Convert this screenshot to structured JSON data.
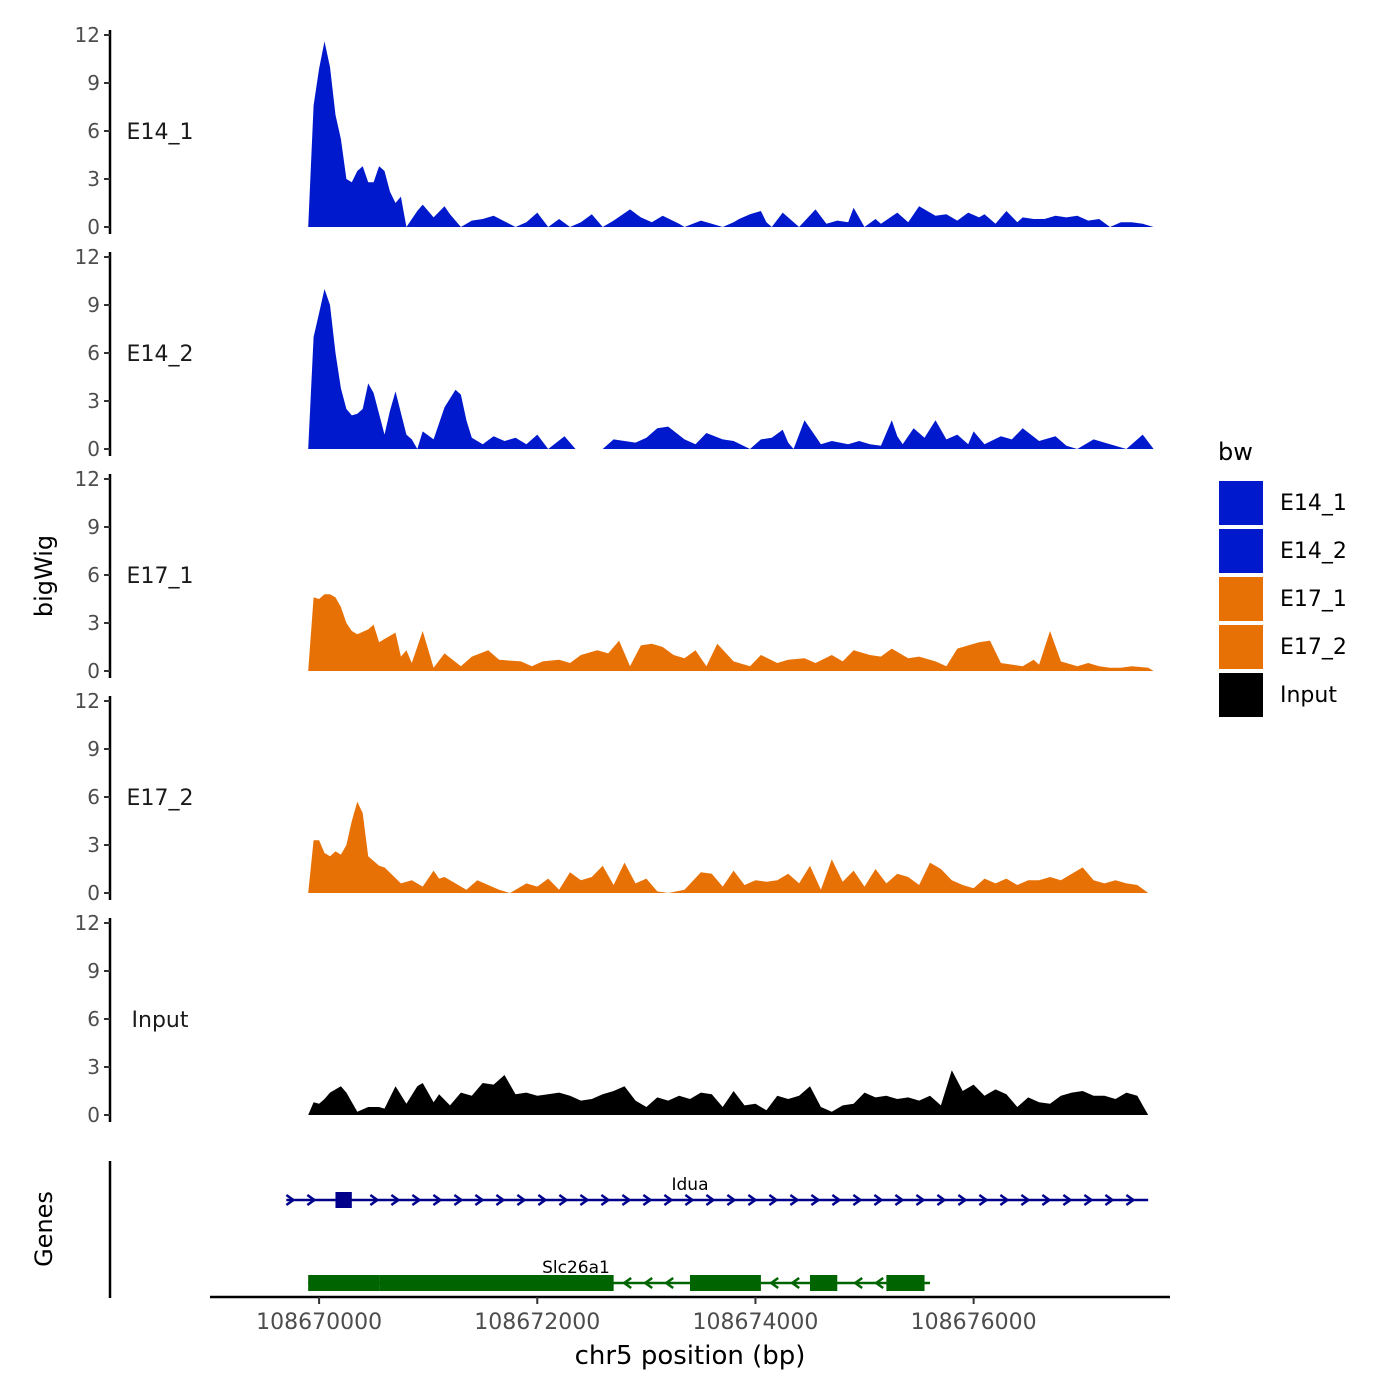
{
  "chart_data": {
    "type": "area",
    "ylabel": "bigWig",
    "xlabel": "chr5 position (bp)",
    "ylim": [
      0,
      12
    ],
    "yticks": [
      0,
      3,
      6,
      9,
      12
    ],
    "xlim": [
      108669000,
      108677800
    ],
    "xticks": [
      108670000,
      108672000,
      108674000,
      108676000
    ],
    "xtick_labels": [
      "108670000",
      "108672000",
      "108674000",
      "108676000"
    ],
    "legend": {
      "title": "bw",
      "placement": "right",
      "entries": [
        {
          "name": "E14_1",
          "color": "#0019CC"
        },
        {
          "name": "E14_2",
          "color": "#0019CC"
        },
        {
          "name": "E17_1",
          "color": "#E87106"
        },
        {
          "name": "E17_2",
          "color": "#E87106"
        },
        {
          "name": "Input",
          "color": "#000000"
        }
      ]
    },
    "series": [
      {
        "name": "E14_1",
        "label": "E14_1",
        "color": "#0019CC",
        "x": [
          108669900,
          108669950,
          108670000,
          108670050,
          108670100,
          108670150,
          108670200,
          108670250,
          108670300,
          108670350,
          108670400,
          108670450,
          108670500,
          108670550,
          108670600,
          108670650,
          108670700,
          108670750,
          108670800,
          108670900,
          108670950,
          108671050,
          108671150,
          108671200,
          108671300,
          108671400,
          108671500,
          108671600,
          108671800,
          108671900,
          108672000,
          108672100,
          108672200,
          108672300,
          108672400,
          108672500,
          108672600,
          108672700,
          108672850,
          108672950,
          108673050,
          108673150,
          108673300,
          108673350,
          108673500,
          108673600,
          108673700,
          108673800,
          108673850,
          108673950,
          108674050,
          108674100,
          108674150,
          108674250,
          108674400,
          108674550,
          108674650,
          108674750,
          108674850,
          108674900,
          108675000,
          108675100,
          108675150,
          108675300,
          108675400,
          108675500,
          108675650,
          108675750,
          108675850,
          108675950,
          108676050,
          108676100,
          108676200,
          108676300,
          108676400,
          108676450,
          108676550,
          108676650,
          108676750,
          108676850,
          108676950,
          108677050,
          108677150,
          108677250,
          108677350,
          108677450,
          108677550,
          108677650
        ],
        "y": [
          0,
          7.6,
          9.9,
          11.6,
          10,
          7,
          5.5,
          3,
          2.8,
          3.5,
          3.8,
          2.8,
          2.8,
          3.8,
          3.5,
          2.2,
          1.5,
          1.9,
          0,
          1,
          1.4,
          0.6,
          1.3,
          0.8,
          0,
          0.4,
          0.5,
          0.7,
          0,
          0.3,
          0.9,
          0,
          0.5,
          0,
          0.3,
          0.8,
          0,
          0.4,
          1.1,
          0.6,
          0.3,
          0.7,
          0.2,
          0,
          0.4,
          0.2,
          0,
          0.3,
          0.5,
          0.8,
          1,
          0.3,
          0,
          0.9,
          0,
          1.1,
          0.2,
          0.4,
          0.3,
          1.2,
          0,
          0.5,
          0.2,
          0.9,
          0.3,
          1.3,
          0.7,
          0.8,
          0.4,
          0.9,
          0.6,
          0.8,
          0.2,
          1,
          0.3,
          0.6,
          0.5,
          0.5,
          0.7,
          0.6,
          0.7,
          0.4,
          0.5,
          0,
          0.3,
          0.3,
          0.2,
          0
        ]
      },
      {
        "name": "E14_2",
        "label": "E14_2",
        "color": "#0019CC",
        "x": [
          108669900,
          108669950,
          108670000,
          108670050,
          108670100,
          108670150,
          108670200,
          108670250,
          108670300,
          108670350,
          108670400,
          108670450,
          108670500,
          108670600,
          108670650,
          108670700,
          108670800,
          108670850,
          108670900,
          108670950,
          108671050,
          108671150,
          108671250,
          108671300,
          108671350,
          108671400,
          108671500,
          108671600,
          108671700,
          108671800,
          108671900,
          108672000,
          108672100,
          108672250,
          108672350,
          108672600,
          108672700,
          108672800,
          108672900,
          108673000,
          108673100,
          108673200,
          108673350,
          108673450,
          108673550,
          108673700,
          108673800,
          108673950,
          108674050,
          108674150,
          108674250,
          108674300,
          108674350,
          108674450,
          108674550,
          108674600,
          108674700,
          108674850,
          108674950,
          108675050,
          108675150,
          108675250,
          108675300,
          108675350,
          108675450,
          108675550,
          108675650,
          108675750,
          108675850,
          108675950,
          108676000,
          108676100,
          108676250,
          108676350,
          108676450,
          108676600,
          108676750,
          108676850,
          108676950,
          108677100,
          108677200,
          108677400,
          108677550,
          108677650
        ],
        "y": [
          0,
          7,
          8.5,
          10,
          9,
          6,
          3.8,
          2.5,
          2.1,
          2.2,
          2.5,
          4.1,
          3.5,
          0.9,
          2.4,
          3.6,
          0.9,
          0.6,
          0,
          1.1,
          0.6,
          2.6,
          3.7,
          3.4,
          1.8,
          0.7,
          0.3,
          0.8,
          0.5,
          0.7,
          0.3,
          0.9,
          0,
          0.8,
          0,
          0,
          0.6,
          0.5,
          0.4,
          0.7,
          1.3,
          1.4,
          0.6,
          0.3,
          1,
          0.6,
          0.5,
          0,
          0.6,
          0.7,
          1.2,
          0.4,
          0,
          1.8,
          0.8,
          0.3,
          0.5,
          0.3,
          0.5,
          0.3,
          0.2,
          1.8,
          0.8,
          0.3,
          1.3,
          0.7,
          1.8,
          0.6,
          0.9,
          0.3,
          1.1,
          0.3,
          0.8,
          0.6,
          1.3,
          0.5,
          0.8,
          0.2,
          0,
          0.6,
          0.4,
          0,
          0.9,
          0
        ]
      },
      {
        "name": "E17_1",
        "label": "E17_1",
        "color": "#E87106",
        "x": [
          108669900,
          108669950,
          108670000,
          108670050,
          108670100,
          108670150,
          108670200,
          108670250,
          108670300,
          108670350,
          108670450,
          108670500,
          108670550,
          108670600,
          108670700,
          108670750,
          108670800,
          108670850,
          108670950,
          108671050,
          108671150,
          108671300,
          108671400,
          108671550,
          108671650,
          108671850,
          108671950,
          108672050,
          108672200,
          108672300,
          108672400,
          108672550,
          108672650,
          108672750,
          108672850,
          108672950,
          108673050,
          108673150,
          108673250,
          108673350,
          108673450,
          108673550,
          108673650,
          108673800,
          108673950,
          108674050,
          108674200,
          108674300,
          108674450,
          108674550,
          108674700,
          108674800,
          108674900,
          108675050,
          108675150,
          108675250,
          108675400,
          108675500,
          108675650,
          108675750,
          108675850,
          108675950,
          108676050,
          108676150,
          108676250,
          108676350,
          108676450,
          108676550,
          108676600,
          108676700,
          108676800,
          108676950,
          108677050,
          108677150,
          108677250,
          108677350,
          108677450,
          108677600,
          108677650
        ],
        "y": [
          0,
          4.6,
          4.5,
          4.8,
          4.8,
          4.6,
          4,
          3,
          2.5,
          2.3,
          2.6,
          2.9,
          1.8,
          2,
          2.4,
          0.9,
          1.3,
          0.5,
          2.5,
          0.2,
          1.1,
          0.3,
          0.9,
          1.3,
          0.7,
          0.6,
          0.3,
          0.6,
          0.7,
          0.5,
          1,
          1.3,
          1.1,
          1.9,
          0.3,
          1.6,
          1.7,
          1.5,
          1,
          0.8,
          1.3,
          0.3,
          1.7,
          0.6,
          0.3,
          1,
          0.5,
          0.7,
          0.8,
          0.5,
          1,
          0.6,
          1.3,
          1,
          0.9,
          1.4,
          0.8,
          0.9,
          0.6,
          0.3,
          1.4,
          1.6,
          1.8,
          1.9,
          0.5,
          0.4,
          0.3,
          0.7,
          0.4,
          2.5,
          0.6,
          0.3,
          0.5,
          0.3,
          0.2,
          0.2,
          0.3,
          0.2,
          0
        ]
      },
      {
        "name": "E17_2",
        "label": "E17_2",
        "color": "#E87106",
        "x": [
          108669900,
          108669950,
          108670000,
          108670050,
          108670100,
          108670150,
          108670200,
          108670250,
          108670300,
          108670350,
          108670400,
          108670450,
          108670550,
          108670600,
          108670750,
          108670850,
          108670950,
          108671050,
          108671100,
          108671150,
          108671250,
          108671350,
          108671450,
          108671550,
          108671650,
          108671750,
          108671900,
          108672000,
          108672100,
          108672200,
          108672300,
          108672400,
          108672500,
          108672600,
          108672700,
          108672800,
          108672900,
          108673000,
          108673100,
          108673200,
          108673350,
          108673500,
          108673600,
          108673700,
          108673800,
          108673900,
          108674000,
          108674100,
          108674200,
          108674300,
          108674400,
          108674500,
          108674600,
          108674700,
          108674800,
          108674900,
          108675000,
          108675100,
          108675200,
          108675300,
          108675400,
          108675500,
          108675600,
          108675700,
          108675800,
          108675900,
          108676000,
          108676100,
          108676200,
          108676300,
          108676400,
          108676500,
          108676600,
          108676700,
          108676800,
          108676900,
          108677000,
          108677100,
          108677200,
          108677300,
          108677400,
          108677500,
          108677600
        ],
        "y": [
          0,
          3.3,
          3.3,
          2.5,
          2.3,
          2.6,
          2.4,
          3,
          4.5,
          5.7,
          5,
          2.3,
          1.7,
          1.6,
          0.6,
          0.8,
          0.4,
          1.4,
          0.9,
          1,
          0.6,
          0.2,
          0.8,
          0.5,
          0.2,
          0,
          0.6,
          0.4,
          0.9,
          0.2,
          1.3,
          0.8,
          1,
          1.7,
          0.5,
          1.9,
          0.6,
          0.9,
          0.1,
          0,
          0.2,
          1.3,
          1.2,
          0.4,
          1.4,
          0.5,
          0.8,
          0.7,
          0.8,
          1.2,
          0.6,
          1.7,
          0.2,
          2.1,
          0.7,
          1.4,
          0.4,
          1.5,
          0.6,
          1.2,
          1,
          0.5,
          1.9,
          1.5,
          0.8,
          0.5,
          0.3,
          0.9,
          0.6,
          0.9,
          0.5,
          0.8,
          0.8,
          1,
          0.8,
          1.2,
          1.6,
          0.8,
          0.6,
          0.8,
          0.6,
          0.5,
          0
        ]
      },
      {
        "name": "Input",
        "label": "Input",
        "color": "#000000",
        "x": [
          108669900,
          108669950,
          108670000,
          108670050,
          108670100,
          108670150,
          108670200,
          108670250,
          108670350,
          108670450,
          108670550,
          108670600,
          108670700,
          108670800,
          108670900,
          108670950,
          108671050,
          108671100,
          108671200,
          108671300,
          108671400,
          108671500,
          108671600,
          108671700,
          108671800,
          108671900,
          108672000,
          108672100,
          108672200,
          108672300,
          108672400,
          108672500,
          108672600,
          108672700,
          108672800,
          108672900,
          108673000,
          108673100,
          108673200,
          108673300,
          108673400,
          108673500,
          108673600,
          108673700,
          108673800,
          108673900,
          108674000,
          108674100,
          108674200,
          108674300,
          108674400,
          108674500,
          108674600,
          108674700,
          108674800,
          108674900,
          108675000,
          108675100,
          108675200,
          108675300,
          108675400,
          108675500,
          108675600,
          108675700,
          108675800,
          108675900,
          108676000,
          108676100,
          108676200,
          108676300,
          108676400,
          108676500,
          108676600,
          108676700,
          108676800,
          108676900,
          108677000,
          108677100,
          108677200,
          108677300,
          108677400,
          108677500,
          108677600
        ],
        "y": [
          0,
          0.8,
          0.7,
          1,
          1.4,
          1.6,
          1.8,
          1.4,
          0.2,
          0.5,
          0.5,
          0.4,
          1.8,
          0.7,
          1.8,
          2,
          0.8,
          1.3,
          0.6,
          1.4,
          1.2,
          2,
          1.9,
          2.5,
          1.3,
          1.4,
          1.2,
          1.3,
          1.4,
          1.2,
          0.9,
          1,
          1.3,
          1.5,
          1.8,
          0.9,
          0.5,
          1.1,
          0.9,
          1.2,
          1,
          1.4,
          1.3,
          0.5,
          1.5,
          0.6,
          0.7,
          0.3,
          1.2,
          1,
          1.2,
          1.8,
          0.5,
          0.2,
          0.6,
          0.7,
          1.4,
          1.1,
          1.2,
          1,
          1.1,
          0.9,
          1.2,
          0.6,
          2.8,
          1.5,
          1.9,
          1.2,
          1.6,
          1.3,
          0.5,
          1.1,
          0.8,
          0.7,
          1.2,
          1.4,
          1.5,
          1.2,
          1.2,
          1,
          1.4,
          1.2,
          0
        ]
      }
    ],
    "genes": {
      "track_label": "Genes",
      "items": [
        {
          "name": "Idua",
          "strand": "+",
          "start": 108669700,
          "end": 108677600,
          "color": "#00008B",
          "exons": [
            [
              108670150,
              108670300
            ]
          ]
        },
        {
          "name": "Slc26a1",
          "strand": "-",
          "start": 108669900,
          "end": 108675600,
          "color": "#006400",
          "exons": [
            [
              108669900,
              108670550
            ],
            [
              108670550,
              108672700
            ],
            [
              108673400,
              108674050
            ],
            [
              108674500,
              108674750
            ],
            [
              108675200,
              108675550
            ]
          ]
        }
      ]
    }
  }
}
